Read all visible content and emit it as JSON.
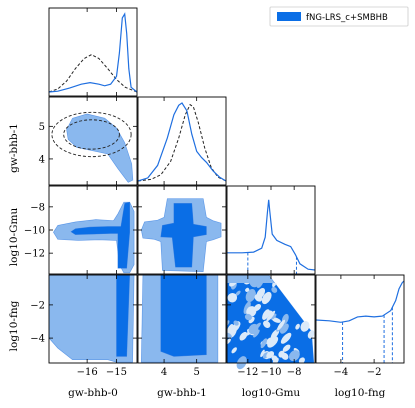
{
  "chart_data": {
    "type": "corner",
    "legend": {
      "label": "fNG-LRS_c+SMBHB",
      "placement": "top-right"
    },
    "colors": {
      "line": "#1f6fe0",
      "fill_dark": "#0a6ee6",
      "fill_light": "#8ab8ee",
      "prior": "#222222"
    },
    "parameters": [
      {
        "name": "gw-bhb-0",
        "range": [
          -17.3,
          -14.3
        ],
        "ticks": [
          -16,
          -15
        ],
        "tick_labels": [
          "−16",
          "−15"
        ]
      },
      {
        "name": "gw-bhb-1",
        "range": [
          3.2,
          5.9
        ],
        "ticks": [
          4,
          5
        ],
        "tick_labels": [
          "4",
          "5"
        ]
      },
      {
        "name": "log10-Gmu",
        "range": [
          -13.8,
          -6.2
        ],
        "ticks": [
          -12,
          -10,
          -8
        ],
        "tick_labels": [
          "−12",
          "−10",
          "−8"
        ]
      },
      {
        "name": "log10-fng",
        "range": [
          -5.5,
          -0.2
        ],
        "ticks": [
          -4,
          -2
        ],
        "tick_labels": [
          "−4",
          "−2"
        ]
      }
    ],
    "axis_labels": {
      "x": [
        "gw-bhb-0",
        "gw-bhb-1",
        "log10-Gmu",
        "log10-fng"
      ],
      "y": [
        "gw-bhb-1",
        "log10-Gmu",
        "log10-fng"
      ]
    },
    "y_ticks": {
      "gw-bhb-1": {
        "values": [
          4,
          5
        ],
        "labels": [
          "4",
          "5"
        ]
      },
      "log10-Gmu": {
        "values": [
          -12,
          -10,
          -8
        ],
        "labels": [
          "−12",
          "−10",
          "−8"
        ]
      },
      "log10-fng": {
        "values": [
          -4,
          -2
        ],
        "labels": [
          "−4",
          "−2"
        ]
      }
    },
    "marginals": [
      {
        "param": "gw-bhb-0",
        "posterior": [
          [
            -17.3,
            0.0
          ],
          [
            -17.0,
            0.01
          ],
          [
            -16.6,
            0.05
          ],
          [
            -16.2,
            0.1
          ],
          [
            -15.9,
            0.12
          ],
          [
            -15.6,
            0.1
          ],
          [
            -15.4,
            0.08
          ],
          [
            -15.2,
            0.1
          ],
          [
            -15.0,
            0.2
          ],
          [
            -14.9,
            0.5
          ],
          [
            -14.8,
            0.95
          ],
          [
            -14.72,
            1.0
          ],
          [
            -14.65,
            0.75
          ],
          [
            -14.58,
            0.3
          ],
          [
            -14.5,
            0.06
          ],
          [
            -14.3,
            0.0
          ]
        ],
        "prior": [
          [
            -17.3,
            0.0
          ],
          [
            -17.0,
            0.04
          ],
          [
            -16.7,
            0.14
          ],
          [
            -16.4,
            0.3
          ],
          [
            -16.1,
            0.43
          ],
          [
            -15.85,
            0.48
          ],
          [
            -15.6,
            0.43
          ],
          [
            -15.3,
            0.3
          ],
          [
            -15.0,
            0.16
          ],
          [
            -14.7,
            0.06
          ],
          [
            -14.3,
            0.0
          ]
        ]
      },
      {
        "param": "gw-bhb-1",
        "posterior": [
          [
            3.2,
            0.0
          ],
          [
            3.5,
            0.04
          ],
          [
            3.8,
            0.2
          ],
          [
            4.1,
            0.55
          ],
          [
            4.3,
            0.85
          ],
          [
            4.45,
            0.97
          ],
          [
            4.55,
            1.0
          ],
          [
            4.7,
            0.9
          ],
          [
            4.85,
            0.6
          ],
          [
            5.0,
            0.38
          ],
          [
            5.15,
            0.3
          ],
          [
            5.3,
            0.24
          ],
          [
            5.5,
            0.13
          ],
          [
            5.7,
            0.05
          ],
          [
            5.9,
            0.0
          ]
        ],
        "prior": [
          [
            3.2,
            0.0
          ],
          [
            3.6,
            0.02
          ],
          [
            3.9,
            0.08
          ],
          [
            4.2,
            0.25
          ],
          [
            4.45,
            0.55
          ],
          [
            4.65,
            0.85
          ],
          [
            4.8,
            0.98
          ],
          [
            4.9,
            0.95
          ],
          [
            5.05,
            0.75
          ],
          [
            5.25,
            0.42
          ],
          [
            5.45,
            0.17
          ],
          [
            5.65,
            0.05
          ],
          [
            5.9,
            0.0
          ]
        ]
      },
      {
        "param": "log10-Gmu",
        "posterior": [
          [
            -13.8,
            0.22
          ],
          [
            -12.5,
            0.22
          ],
          [
            -11.5,
            0.23
          ],
          [
            -10.8,
            0.28
          ],
          [
            -10.5,
            0.42
          ],
          [
            -10.3,
            0.75
          ],
          [
            -10.2,
            0.9
          ],
          [
            -10.1,
            0.75
          ],
          [
            -9.9,
            0.46
          ],
          [
            -9.5,
            0.38
          ],
          [
            -8.8,
            0.33
          ],
          [
            -8.3,
            0.3
          ],
          [
            -7.9,
            0.2
          ],
          [
            -7.5,
            0.08
          ],
          [
            -6.8,
            0.01
          ],
          [
            -6.2,
            0.0
          ]
        ],
        "quantiles": [
          -12.0,
          -7.8
        ]
      },
      {
        "param": "log10-fng",
        "posterior": [
          [
            -5.5,
            0.5
          ],
          [
            -4.7,
            0.49
          ],
          [
            -4.0,
            0.47
          ],
          [
            -3.5,
            0.49
          ],
          [
            -3.0,
            0.54
          ],
          [
            -2.5,
            0.55
          ],
          [
            -2.0,
            0.54
          ],
          [
            -1.5,
            0.55
          ],
          [
            -1.0,
            0.62
          ],
          [
            -0.7,
            0.75
          ],
          [
            -0.5,
            0.9
          ],
          [
            -0.3,
            0.98
          ],
          [
            -0.2,
            1.0
          ]
        ],
        "quantiles": [
          -3.9,
          -1.4,
          -0.9
        ]
      }
    ],
    "joint_contours": [
      {
        "x": "gw-bhb-0",
        "y": "gw-bhb-1",
        "dashed_prior": [
          {
            "center": [
              -15.85,
              4.75
            ],
            "radii": [
              0.95,
              0.45
            ]
          },
          {
            "center": [
              -15.85,
              4.75
            ],
            "radii": [
              1.35,
              0.68
            ]
          }
        ],
        "levels": [
          {
            "level": "1sigma",
            "polygons": [
              [
                [
                  -16.25,
                  4.8
                ],
                [
                  -16.1,
                  4.98
                ],
                [
                  -15.8,
                  4.98
                ],
                [
                  -15.45,
                  4.85
                ],
                [
                  -15.2,
                  4.7
                ],
                [
                  -15.35,
                  4.55
                ],
                [
                  -15.8,
                  4.52
                ],
                [
                  -16.15,
                  4.6
                ]
              ],
              [
                [
                  -15.1,
                  4.55
                ],
                [
                  -14.95,
                  4.45
                ],
                [
                  -14.75,
                  4.15
                ],
                [
                  -14.6,
                  3.75
                ],
                [
                  -14.55,
                  3.45
                ],
                [
                  -14.72,
                  3.5
                ],
                [
                  -14.95,
                  3.95
                ],
                [
                  -15.15,
                  4.35
                ]
              ]
            ]
          },
          {
            "level": "2sigma",
            "polygons": [
              [
                [
                  -16.7,
                  4.9
                ],
                [
                  -16.5,
                  5.25
                ],
                [
                  -16.0,
                  5.38
                ],
                [
                  -15.4,
                  5.25
                ],
                [
                  -15.0,
                  4.95
                ],
                [
                  -14.72,
                  4.5
                ],
                [
                  -14.48,
                  3.85
                ],
                [
                  -14.44,
                  3.35
                ],
                [
                  -14.6,
                  3.28
                ],
                [
                  -14.95,
                  3.7
                ],
                [
                  -15.3,
                  4.15
                ],
                [
                  -15.8,
                  4.25
                ],
                [
                  -16.35,
                  4.35
                ],
                [
                  -16.65,
                  4.6
                ]
              ]
            ]
          }
        ]
      },
      {
        "x": "gw-bhb-0",
        "y": "log10-Gmu",
        "levels": [
          {
            "level": "2sigma",
            "polygons": [
              [
                [
                  -17.0,
                  -10.8
                ],
                [
                  -16.3,
                  -10.9
                ],
                [
                  -15.6,
                  -10.85
                ],
                [
                  -15.0,
                  -10.9
                ],
                [
                  -14.9,
                  -13.0
                ],
                [
                  -14.75,
                  -13.7
                ],
                [
                  -14.55,
                  -13.7
                ],
                [
                  -14.4,
                  -13.0
                ],
                [
                  -14.4,
                  -8.4
                ],
                [
                  -14.55,
                  -7.6
                ],
                [
                  -14.75,
                  -7.6
                ],
                [
                  -14.95,
                  -8.6
                ],
                [
                  -15.1,
                  -9.2
                ],
                [
                  -15.7,
                  -9.1
                ],
                [
                  -16.4,
                  -9.3
                ],
                [
                  -17.0,
                  -9.6
                ],
                [
                  -17.15,
                  -10.2
                ]
              ]
            ]
          },
          {
            "level": "1sigma",
            "polygons": [
              [
                [
                  -16.4,
                  -10.4
                ],
                [
                  -15.8,
                  -10.35
                ],
                [
                  -15.2,
                  -10.3
                ],
                [
                  -14.95,
                  -10.3
                ],
                [
                  -14.95,
                  -13.3
                ],
                [
                  -14.65,
                  -13.3
                ],
                [
                  -14.55,
                  -10.2
                ],
                [
                  -14.55,
                  -7.6
                ],
                [
                  -14.72,
                  -7.7
                ],
                [
                  -14.85,
                  -9.7
                ],
                [
                  -15.3,
                  -9.7
                ],
                [
                  -15.9,
                  -9.75
                ],
                [
                  -16.4,
                  -9.9
                ],
                [
                  -16.55,
                  -10.15
                ]
              ]
            ]
          }
        ]
      },
      {
        "x": "gw-bhb-1",
        "y": "log10-Gmu",
        "levels": [
          {
            "level": "2sigma",
            "polygons": [
              [
                [
                  3.35,
                  -10.7
                ],
                [
                  3.7,
                  -10.8
                ],
                [
                  3.9,
                  -11.0
                ],
                [
                  3.95,
                  -13.5
                ],
                [
                  5.2,
                  -13.6
                ],
                [
                  5.3,
                  -11.0
                ],
                [
                  5.5,
                  -10.85
                ],
                [
                  5.75,
                  -10.6
                ],
                [
                  5.75,
                  -9.4
                ],
                [
                  5.5,
                  -9.2
                ],
                [
                  5.3,
                  -8.9
                ],
                [
                  5.2,
                  -7.3
                ],
                [
                  4.1,
                  -7.3
                ],
                [
                  4.0,
                  -8.9
                ],
                [
                  3.8,
                  -9.15
                ],
                [
                  3.4,
                  -9.3
                ],
                [
                  3.3,
                  -10.0
                ]
              ]
            ]
          },
          {
            "level": "1sigma",
            "polygons": [
              [
                [
                  3.9,
                  -10.6
                ],
                [
                  4.25,
                  -10.65
                ],
                [
                  4.35,
                  -13.2
                ],
                [
                  4.85,
                  -13.2
                ],
                [
                  4.9,
                  -10.6
                ],
                [
                  5.3,
                  -10.4
                ],
                [
                  5.3,
                  -9.7
                ],
                [
                  4.9,
                  -9.5
                ],
                [
                  4.85,
                  -7.7
                ],
                [
                  4.3,
                  -7.7
                ],
                [
                  4.3,
                  -9.4
                ],
                [
                  3.95,
                  -9.6
                ]
              ]
            ]
          }
        ]
      },
      {
        "x": "gw-bhb-0",
        "y": "log10-fng",
        "levels": [
          {
            "level": "2sigma",
            "polygons": [
              [
                [
                  -17.3,
                  -0.2
                ],
                [
                  -17.3,
                  -4.0
                ],
                [
                  -17.0,
                  -4.6
                ],
                [
                  -16.5,
                  -5.3
                ],
                [
                  -15.3,
                  -5.3
                ],
                [
                  -15.0,
                  -5.45
                ],
                [
                  -14.45,
                  -5.45
                ],
                [
                  -14.4,
                  -0.2
                ]
              ]
            ]
          },
          {
            "level": "1sigma",
            "polygons": [
              [
                [
                  -15.0,
                  -0.2
                ],
                [
                  -15.0,
                  -5.1
                ],
                [
                  -14.65,
                  -5.1
                ],
                [
                  -14.55,
                  -0.2
                ]
              ]
            ]
          }
        ]
      },
      {
        "x": "gw-bhb-1",
        "y": "log10-fng",
        "levels": [
          {
            "level": "2sigma",
            "polygons": [
              [
                [
                  3.35,
                  -0.2
                ],
                [
                  3.3,
                  -5.45
                ],
                [
                  5.65,
                  -5.45
                ],
                [
                  5.65,
                  -0.2
                ]
              ]
            ]
          },
          {
            "level": "1sigma",
            "polygons": [
              [
                [
                  3.9,
                  -0.2
                ],
                [
                  3.9,
                  -4.8
                ],
                [
                  4.3,
                  -5.1
                ],
                [
                  5.3,
                  -5.0
                ],
                [
                  5.3,
                  -0.2
                ]
              ]
            ]
          }
        ]
      },
      {
        "x": "log10-Gmu",
        "y": "log10-fng",
        "pattern": "mottled",
        "levels": [
          {
            "level": "2sigma",
            "polygons": [
              [
                [
                  -13.8,
                  -0.2
                ],
                [
                  -10.2,
                  -0.2
                ],
                [
                  -6.5,
                  -3.6
                ],
                [
                  -6.3,
                  -5.5
                ],
                [
                  -13.8,
                  -5.5
                ]
              ]
            ]
          }
        ]
      }
    ]
  }
}
